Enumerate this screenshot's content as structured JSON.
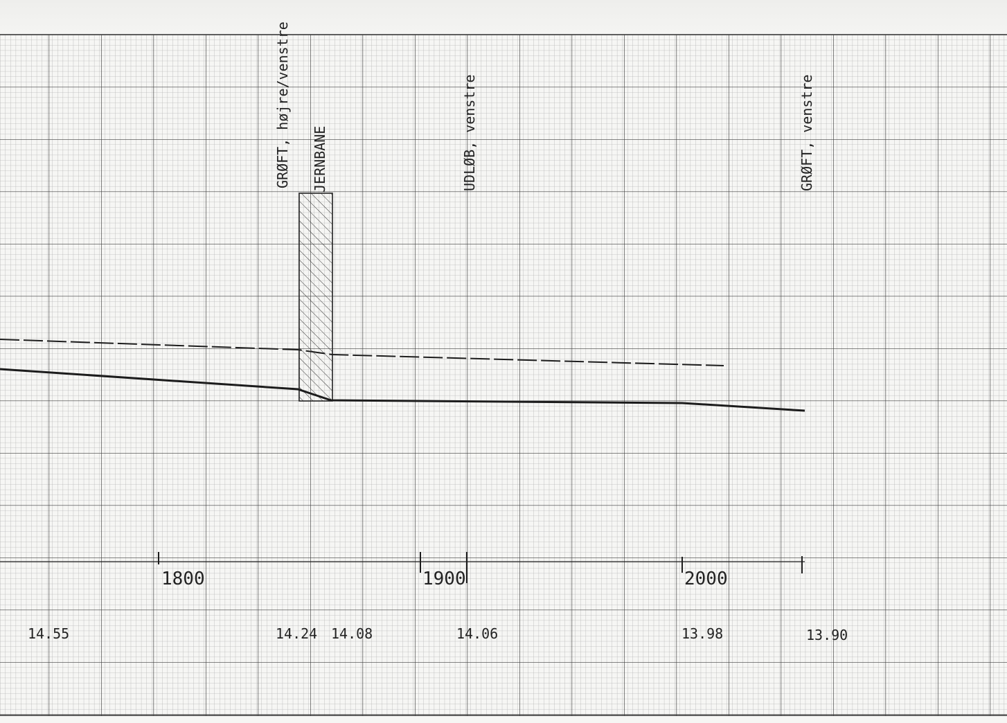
{
  "annotations": [
    {
      "id": "groeft-hoejre-venstre",
      "text": "GRØFT, højre/venstre"
    },
    {
      "id": "jernbane",
      "text": "JERNBANE"
    },
    {
      "id": "udloeb-venstre",
      "text": "UDLØB, venstre"
    },
    {
      "id": "groeft-venstre",
      "text": "GRØFT, venstre"
    }
  ],
  "stations": [
    "1800",
    "1900",
    "2000"
  ],
  "elevations": [
    "14.55",
    "14.24",
    "14.08",
    "14.06",
    "13.98",
    "13.90"
  ],
  "colors": {
    "paper": "#f6f6f4",
    "grid_fine": "#b5b5b5",
    "grid_major": "#3e3e3e",
    "ink": "#1c1c1c"
  }
}
